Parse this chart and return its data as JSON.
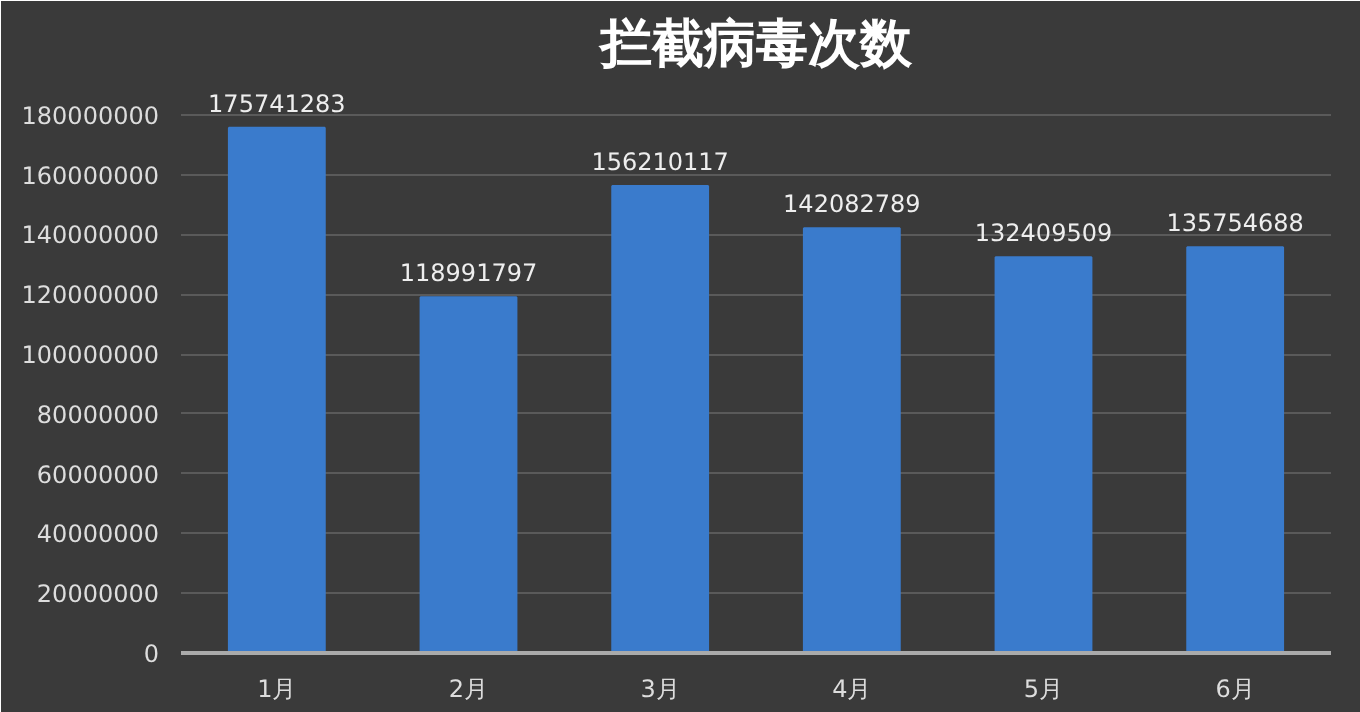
{
  "chart_data": {
    "type": "bar",
    "title": "拦截病毒次数",
    "categories": [
      "1月",
      "2月",
      "3月",
      "4月",
      "5月",
      "6月"
    ],
    "values": [
      175741283,
      118991797,
      156210117,
      142082789,
      132409509,
      135754688
    ],
    "color": "#3a7bcc",
    "ylim": [
      0,
      190000000
    ],
    "yticks": [
      0,
      20000000,
      40000000,
      60000000,
      80000000,
      100000000,
      120000000,
      140000000,
      160000000,
      180000000
    ],
    "grid": "y",
    "data_labels": true
  }
}
